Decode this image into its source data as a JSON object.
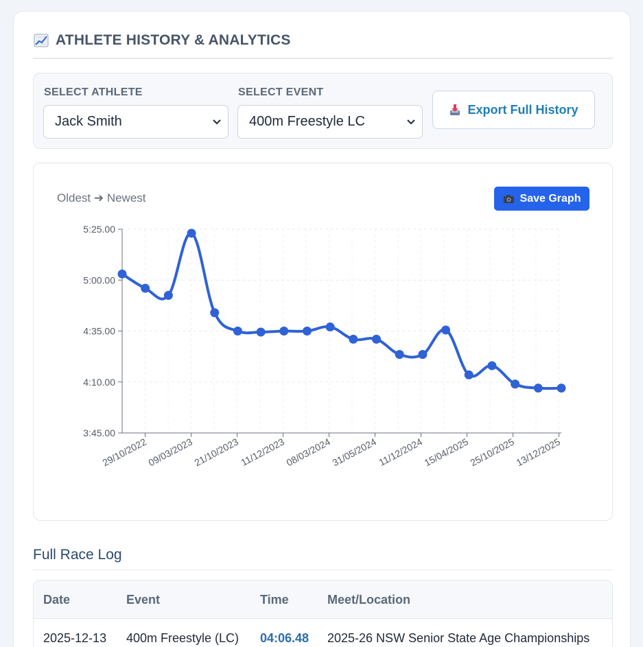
{
  "panel": {
    "title": "ATHLETE HISTORY & ANALYTICS",
    "title_icon": "chart-increasing-icon"
  },
  "controls": {
    "athlete_label": "SELECT ATHLETE",
    "athlete_value": "Jack Smith",
    "event_label": "SELECT EVENT",
    "event_value": "400m Freestyle LC",
    "export_label": "Export Full History"
  },
  "chart_panel": {
    "order_hint": "Oldest ➜ Newest",
    "save_label": "Save Graph"
  },
  "chart_data": {
    "type": "line",
    "title": "",
    "xlabel": "",
    "ylabel": "",
    "y_unit": "seconds",
    "y_ticks": [
      "5:25.00",
      "5:00.00",
      "4:35.00",
      "4:10.00",
      "3:45.00"
    ],
    "ylim": [
      225,
      325
    ],
    "x_tick_labels": [
      "29/10/2022",
      "09/03/2023",
      "21/10/2023",
      "11/12/2023",
      "08/03/2024",
      "31/05/2024",
      "11/12/2024",
      "15/04/2025",
      "25/10/2025",
      "13/12/2025"
    ],
    "series": [
      {
        "name": "400m Freestyle LC",
        "color": "#2f62d6",
        "values": [
          303,
          296,
          292.5,
          323,
          284,
          275,
          274.5,
          275,
          275,
          277,
          271,
          271,
          263.5,
          263.5,
          275.5,
          253.5,
          258,
          249,
          247,
          247
        ]
      }
    ],
    "grid": true
  },
  "log": {
    "title": "Full Race Log",
    "columns": [
      "Date",
      "Event",
      "Time",
      "Meet/Location"
    ],
    "rows": [
      {
        "date": "2025-12-13",
        "event": "400m Freestyle (LC)",
        "time": "04:06.48",
        "meet": "2025-26 NSW Senior State Age Championships"
      }
    ]
  }
}
